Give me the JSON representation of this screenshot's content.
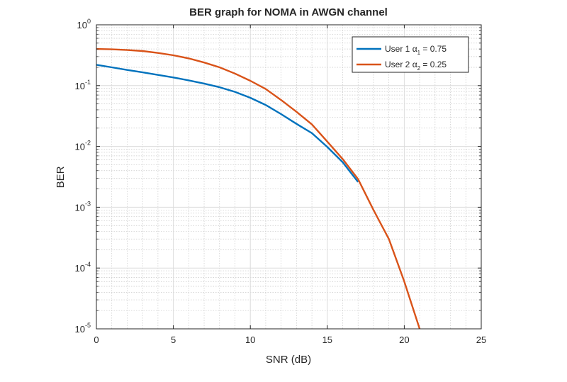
{
  "chart_data": {
    "type": "line",
    "title": "BER graph for NOMA in AWGN channel",
    "xlabel": "SNR (dB)",
    "ylabel": "BER",
    "xlim": [
      0,
      25
    ],
    "ylim": [
      1e-05,
      1
    ],
    "yscale": "log",
    "grid": true,
    "minor_grid": true,
    "legend_position": "top-right",
    "x_ticks": [
      0,
      5,
      10,
      15,
      20,
      25
    ],
    "y_ticks": [
      {
        "base": "10",
        "exp": "-5",
        "value": 1e-05
      },
      {
        "base": "10",
        "exp": "-4",
        "value": 0.0001
      },
      {
        "base": "10",
        "exp": "-3",
        "value": 0.001
      },
      {
        "base": "10",
        "exp": "-2",
        "value": 0.01
      },
      {
        "base": "10",
        "exp": "-1",
        "value": 0.1
      },
      {
        "base": "10",
        "exp": "0",
        "value": 1
      }
    ],
    "series": [
      {
        "name": "User 1",
        "alpha_symbol": "α",
        "alpha_subscript": "1",
        "alpha_value": "= 0.75",
        "color": "#0072BD",
        "x": [
          0,
          1,
          2,
          3,
          4,
          5,
          6,
          7,
          8,
          9,
          10,
          11,
          12,
          13,
          14,
          15,
          16,
          17
        ],
        "y": [
          0.22,
          0.2,
          0.181,
          0.165,
          0.15,
          0.136,
          0.122,
          0.108,
          0.094,
          0.079,
          0.063,
          0.048,
          0.034,
          0.0235,
          0.0165,
          0.0098,
          0.0055,
          0.0026
        ]
      },
      {
        "name": "User 2",
        "alpha_symbol": "α",
        "alpha_subscript": "2",
        "alpha_value": "= 0.25",
        "color": "#D95319",
        "x": [
          0,
          1,
          2,
          3,
          4,
          5,
          6,
          7,
          8,
          9,
          10,
          11,
          12,
          13,
          14,
          15,
          16,
          17,
          18,
          19,
          20,
          21
        ],
        "y": [
          0.4,
          0.395,
          0.385,
          0.37,
          0.345,
          0.315,
          0.28,
          0.24,
          0.2,
          0.158,
          0.12,
          0.088,
          0.058,
          0.037,
          0.023,
          0.012,
          0.0062,
          0.0029,
          0.0009,
          0.0003,
          6e-05,
          1e-05
        ]
      }
    ]
  }
}
